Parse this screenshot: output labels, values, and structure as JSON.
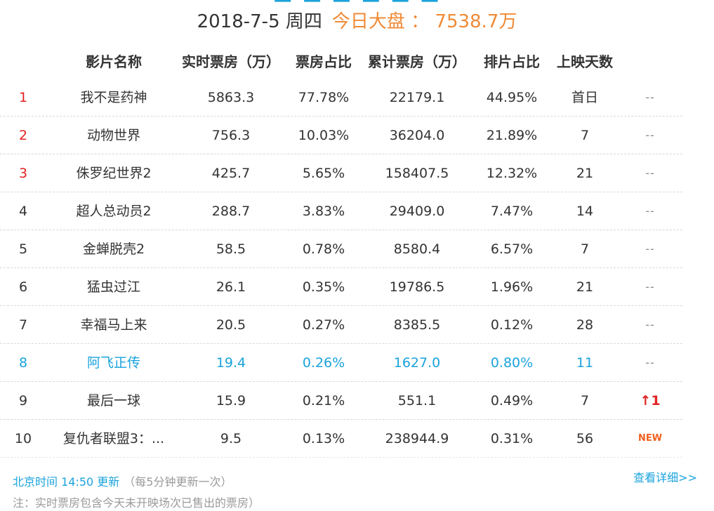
{
  "header": {
    "date": "2018-7-5 周四",
    "total_label": "今日大盘 ： 7538.7万"
  },
  "columns": [
    "影片名称",
    "实时票房（万）",
    "票房占比",
    "累计票房（万）",
    "排片占比",
    "上映天数"
  ],
  "rows": [
    {
      "rank": "1",
      "name": "我不是药神",
      "realtime": "5863.3",
      "share": "77.78%",
      "total": "22179.1",
      "schedule": "44.95%",
      "days": "首日",
      "change": "--"
    },
    {
      "rank": "2",
      "name": "动物世界",
      "realtime": "756.3",
      "share": "10.03%",
      "total": "36204.0",
      "schedule": "21.89%",
      "days": "7",
      "change": "--"
    },
    {
      "rank": "3",
      "name": "侏罗纪世界2",
      "realtime": "425.7",
      "share": "5.65%",
      "total": "158407.5",
      "schedule": "12.32%",
      "days": "21",
      "change": "--"
    },
    {
      "rank": "4",
      "name": "超人总动员2",
      "realtime": "288.7",
      "share": "3.83%",
      "total": "29409.0",
      "schedule": "7.47%",
      "days": "14",
      "change": "--"
    },
    {
      "rank": "5",
      "name": "金蝉脱壳2",
      "realtime": "58.5",
      "share": "0.78%",
      "total": "8580.4",
      "schedule": "6.57%",
      "days": "7",
      "change": "--"
    },
    {
      "rank": "6",
      "name": "猛虫过江",
      "realtime": "26.1",
      "share": "0.35%",
      "total": "19786.5",
      "schedule": "1.96%",
      "days": "21",
      "change": "--"
    },
    {
      "rank": "7",
      "name": "幸福马上来",
      "realtime": "20.5",
      "share": "0.27%",
      "total": "8385.5",
      "schedule": "0.12%",
      "days": "28",
      "change": "--"
    },
    {
      "rank": "8",
      "name": "阿飞正传",
      "realtime": "19.4",
      "share": "0.26%",
      "total": "1627.0",
      "schedule": "0.80%",
      "days": "11",
      "change": "--"
    },
    {
      "rank": "9",
      "name": "最后一球",
      "realtime": "15.9",
      "share": "0.21%",
      "total": "551.1",
      "schedule": "0.49%",
      "days": "7",
      "change": "↑1"
    },
    {
      "rank": "10",
      "name": "复仇者联盟3：...",
      "realtime": "9.5",
      "share": "0.13%",
      "total": "238944.9",
      "schedule": "0.31%",
      "days": "56",
      "change": "NEW"
    }
  ],
  "footer": {
    "update_time": "北京时间 14:50 更新",
    "update_freq": "（每5分钟更新一次）",
    "note": "注：实时票房包含今天未开映场次已售出的票房）",
    "detail_link": "查看详细>>"
  },
  "colors": {
    "accent_blue": "#1aa3dc",
    "rank_red": "#e32222",
    "total_orange": "#f08a36"
  }
}
